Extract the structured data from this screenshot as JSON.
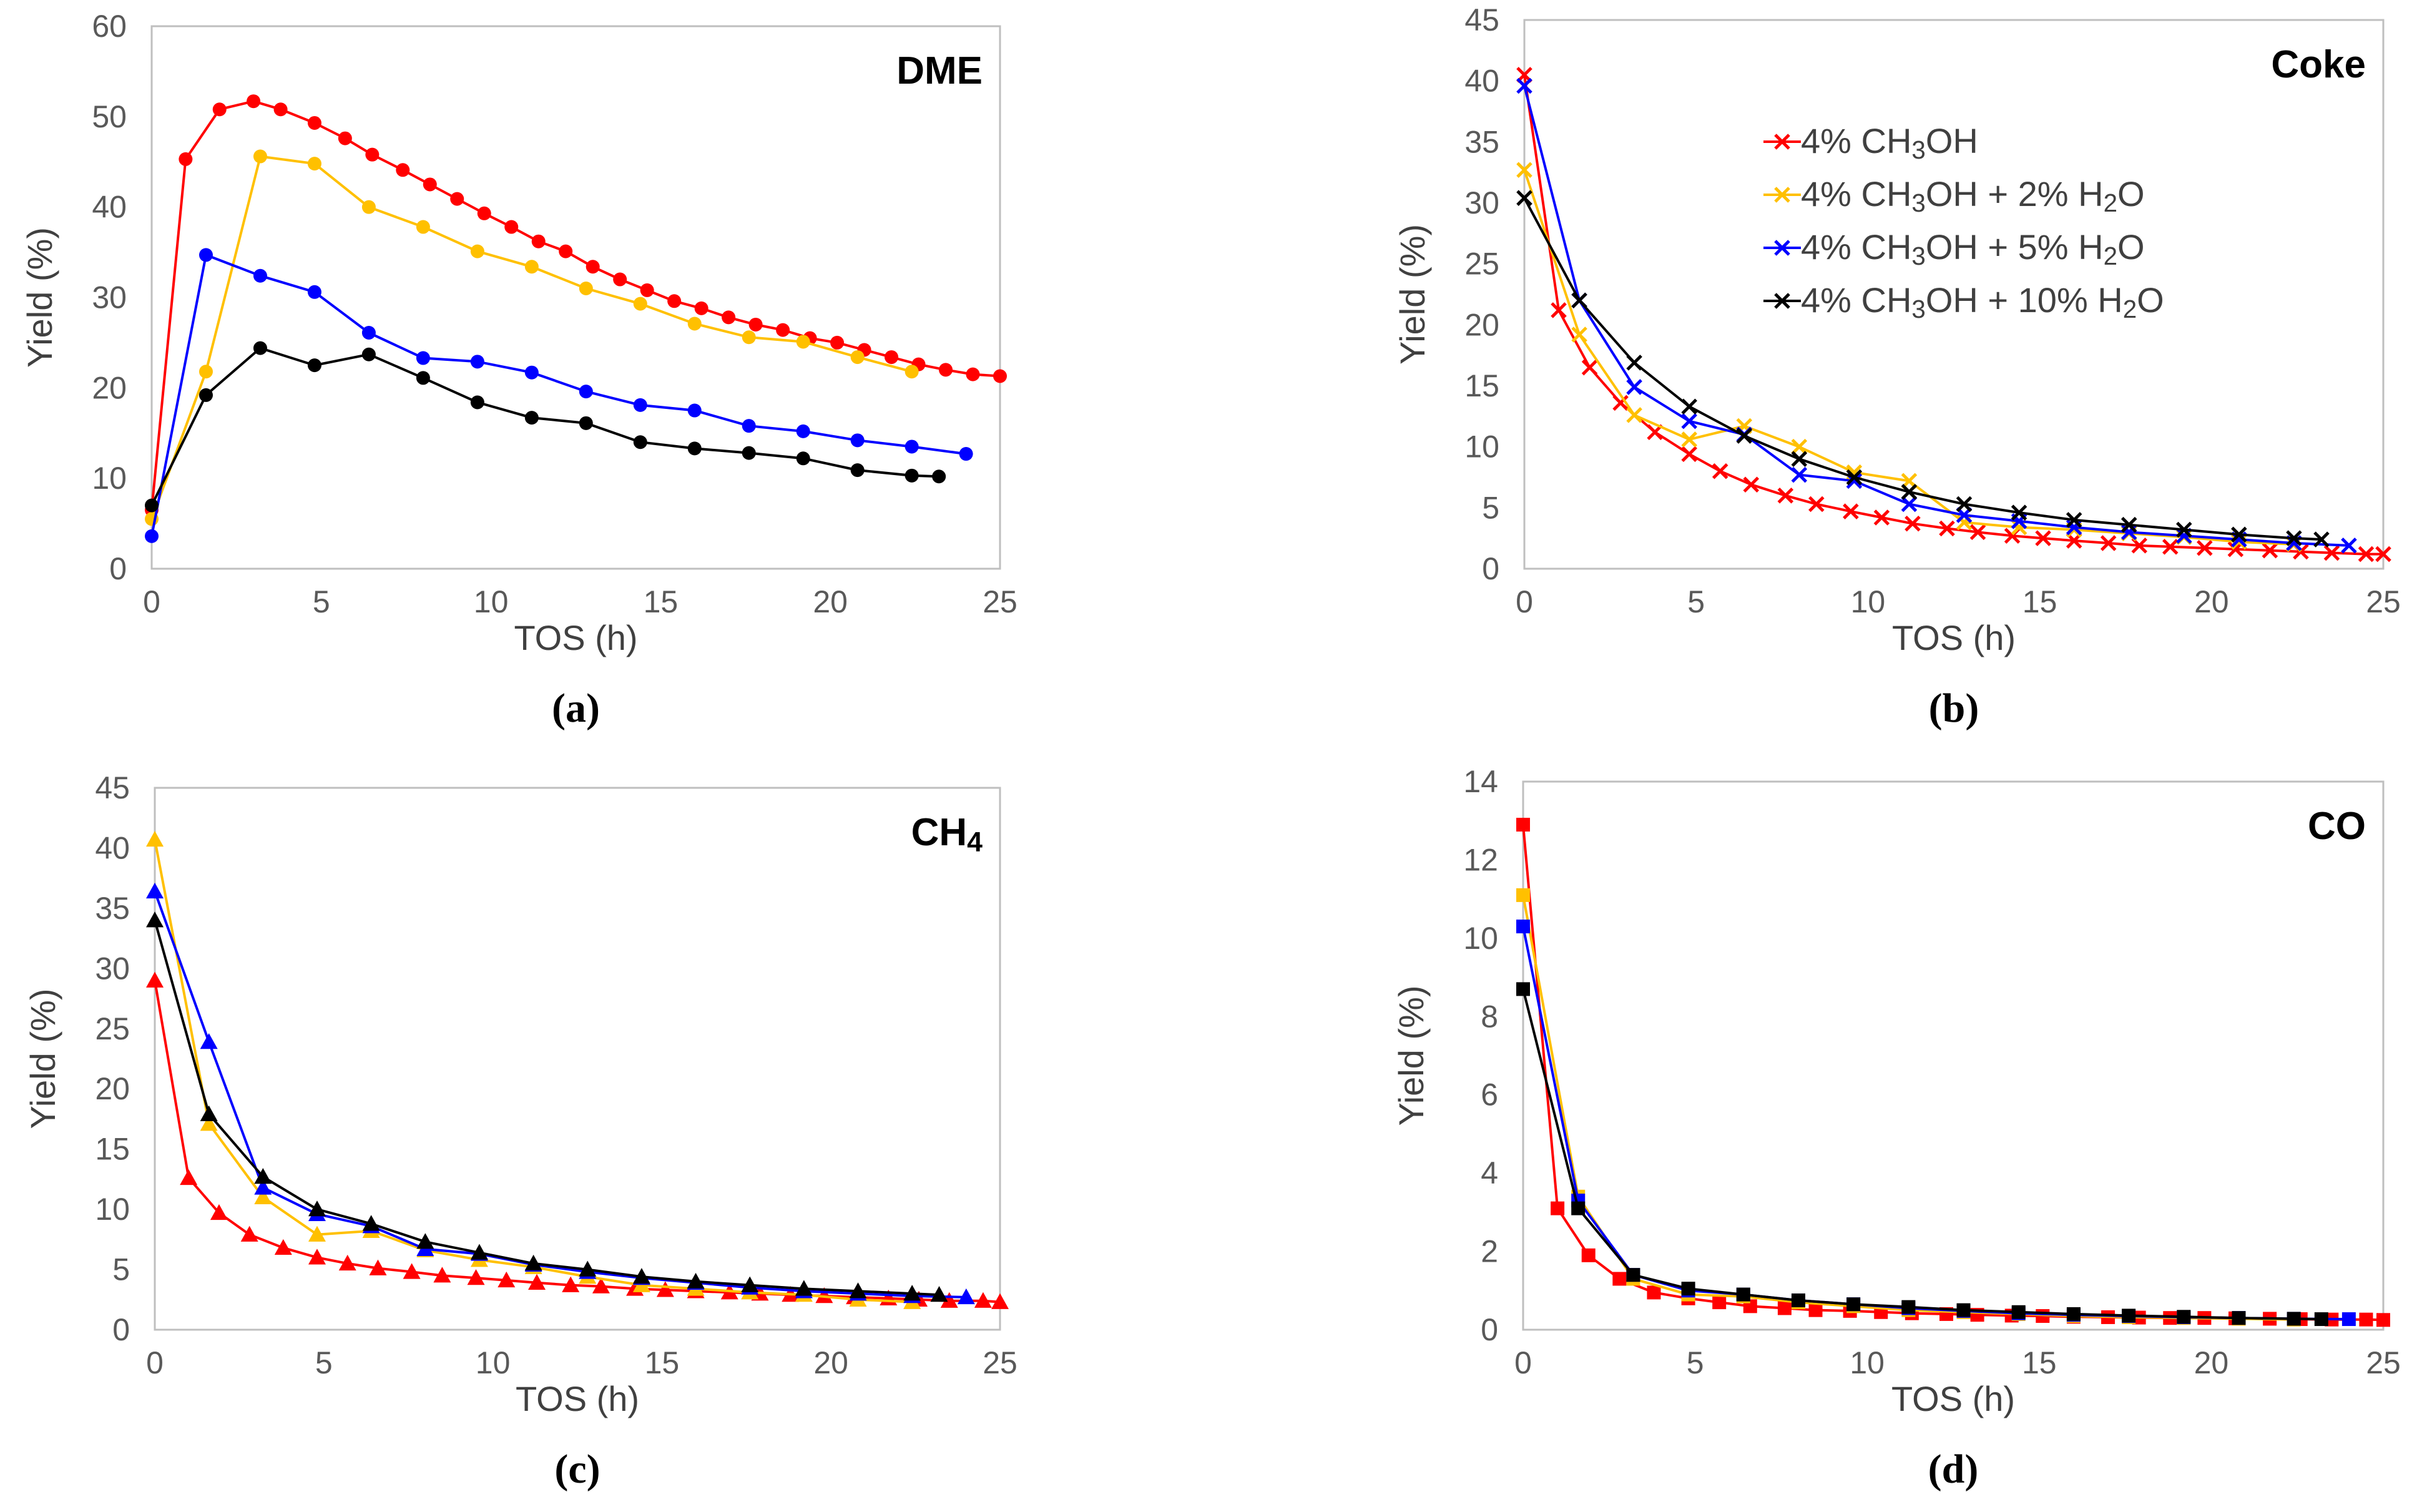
{
  "legend": {
    "entries": [
      {
        "series": "s4",
        "text": "4% CH3OH"
      },
      {
        "series": "s2",
        "text": "4% CH3OH + 2% H2O"
      },
      {
        "series": "s5",
        "text": "4% CH3OH + 5% H2O"
      },
      {
        "series": "s10",
        "text": "4% CH3OH + 10% H2O"
      }
    ]
  },
  "chart_data": [
    {
      "id": "a",
      "type": "line",
      "title": "DME",
      "caption": "(a)",
      "xlabel": "TOS (h)",
      "ylabel": "Yield (%)",
      "xlim": [
        0,
        25
      ],
      "ylim": [
        0,
        60
      ],
      "xticks": [
        0,
        5,
        10,
        15,
        20,
        25
      ],
      "yticks": [
        0,
        10,
        20,
        30,
        40,
        50,
        60
      ],
      "marker": "circle",
      "series": [
        {
          "name": "4% CH3OH",
          "color": "#ff0000",
          "x": [
            0,
            1,
            2,
            3,
            3.8,
            4.8,
            5.7,
            6.5,
            7.4,
            8.2,
            9,
            9.8,
            10.6,
            11.4,
            12.2,
            13,
            13.8,
            14.6,
            15.4,
            16.2,
            17,
            17.8,
            18.6,
            19.4,
            20.2,
            21,
            21.8,
            22.6,
            23.4,
            24.2,
            25
          ],
          "y": [
            6.5,
            45.3,
            50.8,
            51.7,
            50.8,
            49.3,
            47.6,
            45.8,
            44.1,
            42.5,
            40.9,
            39.3,
            37.8,
            36.2,
            35.1,
            33.4,
            32.0,
            30.8,
            29.6,
            28.8,
            27.8,
            27.0,
            26.4,
            25.5,
            25.0,
            24.2,
            23.4,
            22.6,
            22.0,
            21.5,
            21.3
          ]
        },
        {
          "name": "4% CH3OH + 2% H2O",
          "color": "#ffc000",
          "x": [
            0,
            1.6,
            3.2,
            4.8,
            6.4,
            8,
            9.6,
            11.2,
            12.8,
            14.4,
            16,
            17.6,
            19.2,
            20.8,
            22.4
          ],
          "y": [
            5.5,
            21.8,
            45.6,
            44.8,
            40.0,
            37.8,
            35.1,
            33.4,
            31.0,
            29.3,
            27.1,
            25.6,
            25.1,
            23.4,
            21.8
          ]
        },
        {
          "name": "4% CH3OH + 5% H2O",
          "color": "#0000ff",
          "x": [
            0,
            1.6,
            3.2,
            4.8,
            6.4,
            8,
            9.6,
            11.2,
            12.8,
            14.4,
            16,
            17.6,
            19.2,
            20.8,
            22.4,
            24
          ],
          "y": [
            3.6,
            34.7,
            32.4,
            30.6,
            26.1,
            23.3,
            22.9,
            21.7,
            19.6,
            18.1,
            17.5,
            15.8,
            15.2,
            14.2,
            13.5,
            12.7
          ]
        },
        {
          "name": "4% CH3OH + 10% H2O",
          "color": "#000000",
          "x": [
            0,
            1.6,
            3.2,
            4.8,
            6.4,
            8,
            9.6,
            11.2,
            12.8,
            14.4,
            16,
            17.6,
            19.2,
            20.8,
            22.4,
            23.2
          ],
          "y": [
            7.0,
            19.2,
            24.4,
            22.5,
            23.7,
            21.1,
            18.4,
            16.7,
            16.1,
            14.0,
            13.3,
            12.8,
            12.2,
            10.9,
            10.3,
            10.2
          ]
        }
      ]
    },
    {
      "id": "b",
      "type": "line",
      "title": "Coke",
      "caption": "(b)",
      "xlabel": "TOS (h)",
      "ylabel": "Yield (%)",
      "xlim": [
        0,
        25
      ],
      "ylim": [
        0,
        45
      ],
      "xticks": [
        0,
        5,
        10,
        15,
        20,
        25
      ],
      "yticks": [
        0,
        5,
        10,
        15,
        20,
        25,
        30,
        35,
        40,
        45
      ],
      "marker": "x",
      "legend": "top-right",
      "series": [
        {
          "name": "4% CH3OH",
          "color": "#ff0000",
          "x": [
            0,
            1,
            1.9,
            2.8,
            3.8,
            4.8,
            5.7,
            6.6,
            7.6,
            8.5,
            9.5,
            10.4,
            11.3,
            12.3,
            13.2,
            14.2,
            15.1,
            16,
            17,
            17.9,
            18.8,
            19.8,
            20.7,
            21.7,
            22.6,
            23.5,
            24.5,
            25
          ],
          "y": [
            40.5,
            21.2,
            16.5,
            13.6,
            11.2,
            9.4,
            8.0,
            6.9,
            6.0,
            5.3,
            4.7,
            4.2,
            3.7,
            3.3,
            3.0,
            2.7,
            2.5,
            2.3,
            2.1,
            1.9,
            1.8,
            1.7,
            1.6,
            1.5,
            1.4,
            1.3,
            1.2,
            1.2
          ]
        },
        {
          "name": "4% CH3OH + 2% H2O",
          "color": "#ffc000",
          "x": [
            0,
            1.6,
            3.2,
            4.8,
            6.4,
            8,
            9.6,
            11.2,
            12.8,
            14.4,
            16,
            17.6,
            19.2,
            20.8,
            22.4
          ],
          "y": [
            32.7,
            19.2,
            12.6,
            10.6,
            11.7,
            10.0,
            7.9,
            7.2,
            3.8,
            3.4,
            3.2,
            2.9,
            2.6,
            2.2,
            2.0
          ]
        },
        {
          "name": "4% CH3OH + 5% H2O",
          "color": "#0000ff",
          "x": [
            0,
            1.6,
            3.2,
            4.8,
            6.4,
            8,
            9.6,
            11.2,
            12.8,
            14.4,
            16,
            17.6,
            19.2,
            20.8,
            22.4,
            24
          ],
          "y": [
            39.6,
            22.0,
            14.9,
            12.1,
            11.0,
            7.7,
            7.2,
            5.3,
            4.4,
            3.9,
            3.4,
            3.0,
            2.7,
            2.4,
            2.1,
            1.9
          ]
        },
        {
          "name": "4% CH3OH + 10% H2O",
          "color": "#000000",
          "x": [
            0,
            1.6,
            3.2,
            4.8,
            6.4,
            8,
            9.6,
            11.2,
            12.8,
            14.4,
            16,
            17.6,
            19.2,
            20.8,
            22.4,
            23.2
          ],
          "y": [
            30.4,
            22.0,
            16.9,
            13.3,
            10.9,
            9.0,
            7.5,
            6.3,
            5.3,
            4.6,
            4.0,
            3.6,
            3.2,
            2.8,
            2.5,
            2.4
          ]
        }
      ]
    },
    {
      "id": "c",
      "type": "line",
      "title": "CH4",
      "caption": "(c)",
      "xlabel": "TOS (h)",
      "ylabel": "Yield (%)",
      "xlim": [
        0,
        25
      ],
      "ylim": [
        0,
        45
      ],
      "xticks": [
        0,
        5,
        10,
        15,
        20,
        25
      ],
      "yticks": [
        0,
        5,
        10,
        15,
        20,
        25,
        30,
        35,
        40,
        45
      ],
      "marker": "triangle",
      "series": [
        {
          "name": "4% CH3OH",
          "color": "#ff0000",
          "x": [
            0,
            1,
            1.9,
            2.8,
            3.8,
            4.8,
            5.7,
            6.6,
            7.6,
            8.5,
            9.5,
            10.4,
            11.3,
            12.3,
            13.2,
            14.2,
            15.1,
            16,
            17,
            17.9,
            18.8,
            19.8,
            20.7,
            21.7,
            22.6,
            23.5,
            24.5,
            25
          ],
          "y": [
            29.0,
            12.6,
            9.7,
            7.9,
            6.8,
            6.0,
            5.5,
            5.1,
            4.8,
            4.5,
            4.3,
            4.1,
            3.9,
            3.7,
            3.6,
            3.4,
            3.3,
            3.2,
            3.1,
            3.0,
            2.9,
            2.8,
            2.7,
            2.6,
            2.5,
            2.4,
            2.4,
            2.3
          ]
        },
        {
          "name": "4% CH3OH + 2% H2O",
          "color": "#ffc000",
          "x": [
            0,
            1.6,
            3.2,
            4.8,
            6.4,
            8,
            9.6,
            11.2,
            12.8,
            14.4,
            16,
            17.6,
            19.2,
            20.8,
            22.4
          ],
          "y": [
            40.7,
            17.1,
            11.0,
            7.9,
            8.2,
            6.6,
            5.8,
            5.2,
            4.4,
            3.7,
            3.4,
            3.1,
            2.9,
            2.5,
            2.3
          ]
        },
        {
          "name": "4% CH3OH + 5% H2O",
          "color": "#0000ff",
          "x": [
            0,
            1.6,
            3.2,
            4.8,
            6.4,
            8,
            9.6,
            11.2,
            12.8,
            14.4,
            16,
            17.6,
            19.2,
            20.8,
            22.4,
            24
          ],
          "y": [
            36.4,
            23.9,
            11.8,
            9.6,
            8.6,
            6.7,
            6.3,
            5.4,
            4.8,
            4.3,
            3.9,
            3.5,
            3.2,
            3.0,
            2.8,
            2.7
          ]
        },
        {
          "name": "4% CH3OH + 10% H2O",
          "color": "#000000",
          "x": [
            0,
            1.6,
            3.2,
            4.8,
            6.4,
            8,
            9.6,
            11.2,
            12.8,
            14.4,
            16,
            17.6,
            19.2,
            20.8,
            22.4,
            23.2
          ],
          "y": [
            34.0,
            17.9,
            12.7,
            10.0,
            8.8,
            7.3,
            6.4,
            5.5,
            5.0,
            4.4,
            4.0,
            3.7,
            3.4,
            3.2,
            3.0,
            2.9
          ]
        }
      ]
    },
    {
      "id": "d",
      "type": "line",
      "title": "CO",
      "caption": "(d)",
      "xlabel": "TOS (h)",
      "ylabel": "Yield (%)",
      "xlim": [
        0,
        25
      ],
      "ylim": [
        0,
        14
      ],
      "xticks": [
        0,
        5,
        10,
        15,
        20,
        25
      ],
      "yticks": [
        0,
        2,
        4,
        6,
        8,
        10,
        12,
        14
      ],
      "marker": "square",
      "series": [
        {
          "name": "4% CH3OH",
          "color": "#ff0000",
          "x": [
            0,
            1,
            1.9,
            2.8,
            3.8,
            4.8,
            5.7,
            6.6,
            7.6,
            8.5,
            9.5,
            10.4,
            11.3,
            12.3,
            13.2,
            14.2,
            15.1,
            16,
            17,
            17.9,
            18.8,
            19.8,
            20.7,
            21.7,
            22.6,
            23.5,
            24.5,
            25
          ],
          "y": [
            12.9,
            3.1,
            1.9,
            1.3,
            0.95,
            0.8,
            0.7,
            0.6,
            0.55,
            0.5,
            0.48,
            0.45,
            0.42,
            0.4,
            0.38,
            0.36,
            0.35,
            0.33,
            0.32,
            0.31,
            0.3,
            0.3,
            0.29,
            0.28,
            0.27,
            0.26,
            0.26,
            0.25
          ]
        },
        {
          "name": "4% CH3OH + 2% H2O",
          "color": "#ffc000",
          "x": [
            0,
            1.6,
            3.2,
            4.8,
            6.4,
            8,
            9.6,
            11.2,
            12.8,
            14.4,
            16,
            17.6,
            19.2,
            20.8,
            22.4
          ],
          "y": [
            11.1,
            3.4,
            1.3,
            0.9,
            0.85,
            0.7,
            0.6,
            0.5,
            0.45,
            0.4,
            0.35,
            0.32,
            0.3,
            0.28,
            0.26
          ]
        },
        {
          "name": "4% CH3OH + 5% H2O",
          "color": "#0000ff",
          "x": [
            0,
            1.6,
            3.2,
            4.8,
            6.4,
            8,
            9.6,
            11.2,
            12.8,
            14.4,
            16,
            17.6,
            19.2,
            20.8,
            22.4,
            24
          ],
          "y": [
            10.3,
            3.3,
            1.4,
            1.0,
            0.9,
            0.75,
            0.65,
            0.55,
            0.48,
            0.42,
            0.38,
            0.35,
            0.32,
            0.3,
            0.28,
            0.27
          ]
        },
        {
          "name": "4% CH3OH + 10% H2O",
          "color": "#000000",
          "x": [
            0,
            1.6,
            3.2,
            4.8,
            6.4,
            8,
            9.6,
            11.2,
            12.8,
            14.4,
            16,
            17.6,
            19.2,
            20.8,
            22.4,
            23.2
          ],
          "y": [
            8.7,
            3.1,
            1.4,
            1.05,
            0.9,
            0.75,
            0.65,
            0.58,
            0.5,
            0.45,
            0.4,
            0.36,
            0.33,
            0.3,
            0.28,
            0.27
          ]
        }
      ]
    }
  ]
}
